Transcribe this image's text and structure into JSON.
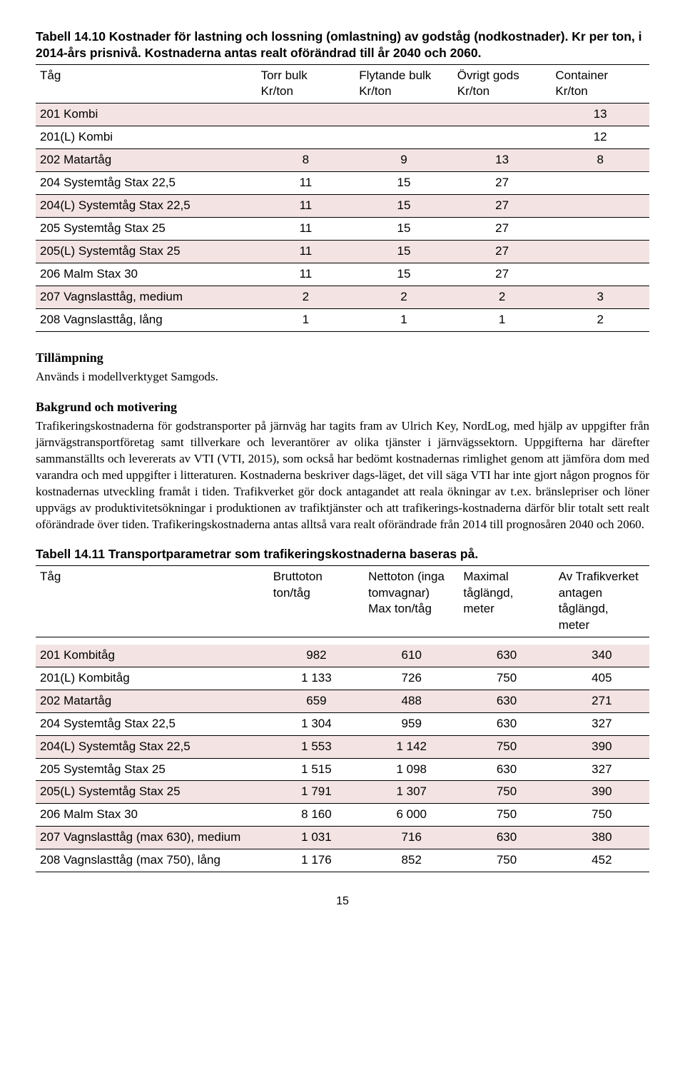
{
  "table1": {
    "title": "Tabell 14.10 Kostnader för lastning och lossning (omlastning) av godståg (nodkostnader). Kr per ton, i 2014-års prisnivå. Kostnaderna antas realt oförändrad till år 2040 och 2060.",
    "headers": [
      "Tåg",
      "Torr bulk Kr/ton",
      "Flytande bulk Kr/ton",
      "Övrigt gods Kr/ton",
      "Container Kr/ton"
    ],
    "rows": [
      {
        "label": "201 Kombi",
        "v": [
          "",
          "",
          "",
          "13"
        ],
        "shade": true
      },
      {
        "label": "201(L) Kombi",
        "v": [
          "",
          "",
          "",
          "12"
        ],
        "shade": false
      },
      {
        "label": "202 Matartåg",
        "v": [
          "8",
          "9",
          "13",
          "8"
        ],
        "shade": true
      },
      {
        "label": "204 Systemtåg Stax 22,5",
        "v": [
          "11",
          "15",
          "27",
          ""
        ],
        "shade": false
      },
      {
        "label": "204(L) Systemtåg Stax 22,5",
        "v": [
          "11",
          "15",
          "27",
          ""
        ],
        "shade": true
      },
      {
        "label": "205 Systemtåg Stax 25",
        "v": [
          "11",
          "15",
          "27",
          ""
        ],
        "shade": false
      },
      {
        "label": "205(L) Systemtåg Stax 25",
        "v": [
          "11",
          "15",
          "27",
          ""
        ],
        "shade": true
      },
      {
        "label": "206 Malm Stax 30",
        "v": [
          "11",
          "15",
          "27",
          ""
        ],
        "shade": false
      },
      {
        "label": "207 Vagnslasttåg, medium",
        "v": [
          "2",
          "2",
          "2",
          "3"
        ],
        "shade": true
      },
      {
        "label": "208 Vagnslasttåg, lång",
        "v": [
          "1",
          "1",
          "1",
          "2"
        ],
        "shade": false
      }
    ]
  },
  "sections": {
    "tillampning": {
      "heading": "Tillämpning",
      "body": "Används i modellverktyget Samgods."
    },
    "bakgrund": {
      "heading": "Bakgrund och motivering",
      "body": "Trafikeringskostnaderna för godstransporter på järnväg har tagits fram av Ulrich Key, NordLog, med hjälp av uppgifter från järnvägstransportföretag samt tillverkare och leverantörer av olika tjänster i järnvägssektorn. Uppgifterna har därefter sammanställts och levererats av VTI (VTI, 2015), som också har bedömt kostnadernas rimlighet genom att jämföra dom med varandra och med uppgifter i litteraturen. Kostnaderna beskriver dags-läget, det vill säga VTI har inte gjort någon prognos för kostnadernas utveckling framåt i tiden. Trafikverket gör dock antagandet att reala ökningar av t.ex. bränslepriser och löner uppvägs av produktivitetsökningar i produktionen av trafiktjänster och att trafikerings-kostnaderna därför blir totalt sett realt oförändrade över tiden. Trafikeringskostnaderna antas alltså vara realt oförändrade från 2014 till prognosåren 2040 och 2060."
    }
  },
  "table2": {
    "title": "Tabell 14.11 Transportparametrar som trafikeringskostnaderna baseras på.",
    "headers": [
      "Tåg",
      "Bruttoton ton/tåg",
      "Nettoton (inga tomvagnar) Max ton/tåg",
      "Maximal tåglängd, meter",
      "Av Trafikverket antagen tåglängd, meter"
    ],
    "rows": [
      {
        "label": "201 Kombitåg",
        "v": [
          "982",
          "610",
          "630",
          "340"
        ],
        "shade": true
      },
      {
        "label": "201(L) Kombitåg",
        "v": [
          "1 133",
          "726",
          "750",
          "405"
        ],
        "shade": false
      },
      {
        "label": "202 Matartåg",
        "v": [
          "659",
          "488",
          "630",
          "271"
        ],
        "shade": true
      },
      {
        "label": "204 Systemtåg Stax 22,5",
        "v": [
          "1 304",
          "959",
          "630",
          "327"
        ],
        "shade": false
      },
      {
        "label": "204(L) Systemtåg Stax 22,5",
        "v": [
          "1 553",
          "1 142",
          "750",
          "390"
        ],
        "shade": true
      },
      {
        "label": "205 Systemtåg Stax 25",
        "v": [
          "1 515",
          "1 098",
          "630",
          "327"
        ],
        "shade": false
      },
      {
        "label": "205(L) Systemtåg Stax 25",
        "v": [
          "1 791",
          "1 307",
          "750",
          "390"
        ],
        "shade": true
      },
      {
        "label": "206 Malm Stax 30",
        "v": [
          "8 160",
          "6 000",
          "750",
          "750"
        ],
        "shade": false
      },
      {
        "label": "207 Vagnslasttåg (max 630), medium",
        "v": [
          "1 031",
          "716",
          "630",
          "380"
        ],
        "shade": true
      },
      {
        "label": "208 Vagnslasttåg (max 750), lång",
        "v": [
          "1 176",
          "852",
          "750",
          "452"
        ],
        "shade": false
      }
    ]
  },
  "pageNumber": "15"
}
